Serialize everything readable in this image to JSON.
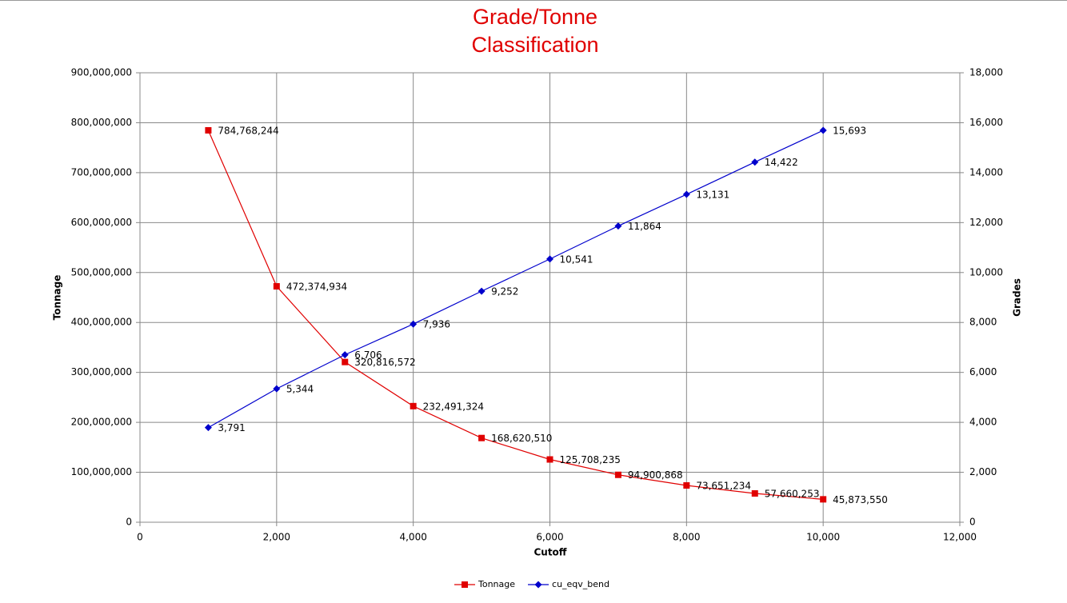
{
  "chart_data": {
    "type": "line",
    "title": [
      "Grade/Tonne",
      "Classification"
    ],
    "xlabel": "Cutoff",
    "ylabel": "Tonnage",
    "y2label": "Grades",
    "x": [
      1000,
      2000,
      3000,
      4000,
      5000,
      6000,
      7000,
      8000,
      9000,
      10000
    ],
    "series": [
      {
        "name": "Tonnage",
        "color": "#e00000",
        "marker": "square",
        "values": [
          784768244,
          472374934,
          320816572,
          232491324,
          168620510,
          125708235,
          94900868,
          73651234,
          57660253,
          45873550
        ],
        "value_labels": [
          "784,768,244",
          "472,374,934",
          "320,816,572",
          "232,491,324",
          "168,620,510",
          "125,708,235",
          "94,900,868",
          "73,651,234",
          "57,660,253",
          "45,873,550"
        ]
      },
      {
        "name": "cu_eqv_bend",
        "color": "#0000cc",
        "marker": "diamond",
        "axis": "y2",
        "values": [
          3791,
          5344,
          6706,
          7936,
          9252,
          10541,
          11864,
          13131,
          14422,
          15693
        ],
        "value_labels": [
          "3,791",
          "5,344",
          "6,706",
          "7,936",
          "9,252",
          "10,541",
          "11,864",
          "13,131",
          "14,422",
          "15,693"
        ]
      }
    ],
    "xlim": [
      0,
      12000
    ],
    "xticks": [
      0,
      {
        "value": 2000,
        "label": "2,000"
      },
      {
        "value": 4000,
        "label": "4,000"
      },
      {
        "value": 6000,
        "label": "6,000"
      },
      {
        "value": 8000,
        "label": "8,000"
      },
      {
        "value": 10000,
        "label": "10,000"
      },
      {
        "value": 12000,
        "label": "12,000"
      }
    ],
    "ylim": [
      0,
      900000000
    ],
    "yticks": [
      0,
      {
        "value": 100000000,
        "label": "100,000,000"
      },
      {
        "value": 200000000,
        "label": "200,000,000"
      },
      {
        "value": 300000000,
        "label": "300,000,000"
      },
      {
        "value": 400000000,
        "label": "400,000,000"
      },
      {
        "value": 500000000,
        "label": "500,000,000"
      },
      {
        "value": 600000000,
        "label": "600,000,000"
      },
      {
        "value": 700000000,
        "label": "700,000,000"
      },
      {
        "value": 800000000,
        "label": "800,000,000"
      },
      {
        "value": 900000000,
        "label": "900,000,000"
      }
    ],
    "y2lim": [
      0,
      18000
    ],
    "y2ticks": [
      0,
      {
        "value": 2000,
        "label": "2,000"
      },
      {
        "value": 4000,
        "label": "4,000"
      },
      {
        "value": 6000,
        "label": "6,000"
      },
      {
        "value": 8000,
        "label": "8,000"
      },
      {
        "value": 10000,
        "label": "10,000"
      },
      {
        "value": 12000,
        "label": "12,000"
      },
      {
        "value": 14000,
        "label": "14,000"
      },
      {
        "value": 16000,
        "label": "16,000"
      },
      {
        "value": 18000,
        "label": "18,000"
      }
    ],
    "grid": true,
    "legend": "bottom"
  }
}
